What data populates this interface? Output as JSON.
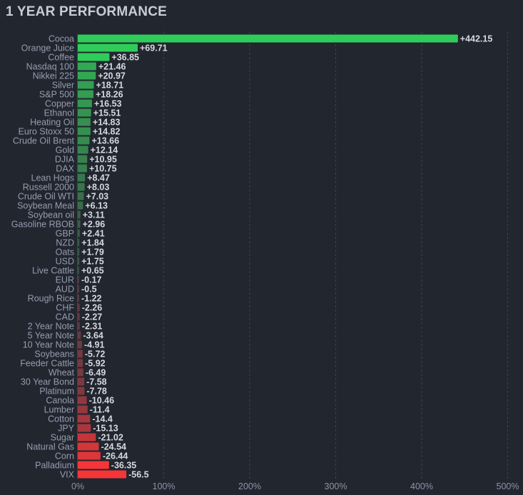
{
  "chart_data": {
    "type": "bar",
    "orientation": "horizontal",
    "title": "1 YEAR PERFORMANCE",
    "note": "bars drawn by magnitude; green positive, red negative",
    "xlim": [
      0,
      500
    ],
    "xticks": [
      "0%",
      "100%",
      "200%",
      "300%",
      "400%",
      "500%"
    ],
    "grid": true,
    "colors": {
      "positive": "#30cc5a",
      "negative": "#f63538",
      "neutral": "#414554"
    },
    "categories": [
      "Cocoa",
      "Orange Juice",
      "Coffee",
      "Nasdaq 100",
      "Nikkei 225",
      "Silver",
      "S&P 500",
      "Copper",
      "Ethanol",
      "Heating Oil",
      "Euro Stoxx 50",
      "Crude Oil Brent",
      "Gold",
      "DJIA",
      "DAX",
      "Lean Hogs",
      "Russell 2000",
      "Crude Oil WTI",
      "Soybean Meal",
      "Soybean oil",
      "Gasoline RBOB",
      "GBP",
      "NZD",
      "Oats",
      "USD",
      "Live Cattle",
      "EUR",
      "AUD",
      "Rough Rice",
      "CHF",
      "CAD",
      "2 Year Note",
      "5 Year Note",
      "10 Year Note",
      "Soybeans",
      "Feeder Cattle",
      "Wheat",
      "30 Year Bond",
      "Platinum",
      "Canola",
      "Lumber",
      "Cotton",
      "JPY",
      "Sugar",
      "Natural Gas",
      "Corn",
      "Palladium",
      "VIX"
    ],
    "values": [
      442.15,
      69.71,
      36.85,
      21.46,
      20.97,
      18.71,
      18.26,
      16.53,
      15.51,
      14.83,
      14.82,
      13.66,
      12.14,
      10.95,
      10.75,
      8.47,
      8.03,
      7.03,
      6.13,
      3.11,
      2.96,
      2.41,
      1.84,
      1.79,
      1.75,
      0.65,
      -0.17,
      -0.5,
      -1.22,
      -2.26,
      -2.27,
      -2.31,
      -3.64,
      -4.91,
      -5.72,
      -5.92,
      -6.49,
      -7.58,
      -7.78,
      -10.46,
      -11.4,
      -14.4,
      -15.13,
      -21.02,
      -24.54,
      -26.44,
      -36.35,
      -56.5
    ],
    "value_labels": [
      "+442.15",
      "+69.71",
      "+36.85",
      "+21.46",
      "+20.97",
      "+18.71",
      "+18.26",
      "+16.53",
      "+15.51",
      "+14.83",
      "+14.82",
      "+13.66",
      "+12.14",
      "+10.95",
      "+10.75",
      "+8.47",
      "+8.03",
      "+7.03",
      "+6.13",
      "+3.11",
      "+2.96",
      "+2.41",
      "+1.84",
      "+1.79",
      "+1.75",
      "+0.65",
      "-0.17",
      "-0.5",
      "-1.22",
      "-2.26",
      "-2.27",
      "-2.31",
      "-3.64",
      "-4.91",
      "-5.72",
      "-5.92",
      "-6.49",
      "-7.58",
      "-7.78",
      "-10.46",
      "-11.4",
      "-14.4",
      "-15.13",
      "-21.02",
      "-24.54",
      "-26.44",
      "-36.35",
      "-56.5"
    ]
  }
}
